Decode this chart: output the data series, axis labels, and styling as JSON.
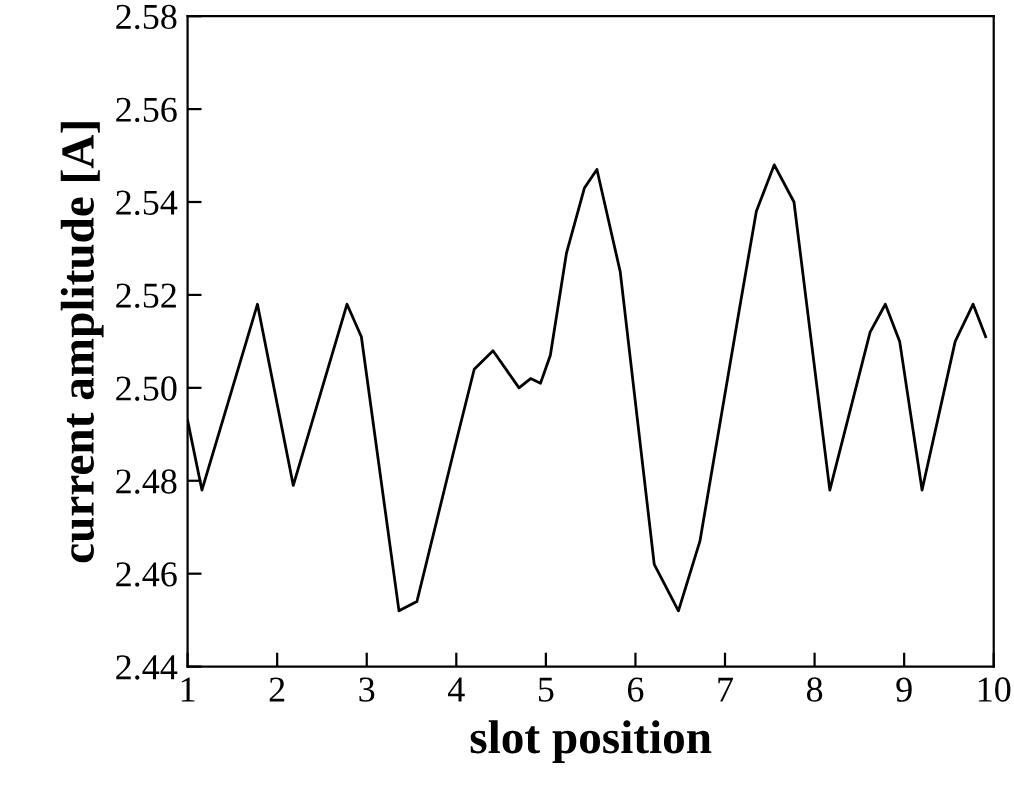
{
  "chart_data": {
    "type": "line",
    "xlabel": "slot position",
    "ylabel": "current amplitude [A]",
    "series": [
      {
        "color": "#000000",
        "x": [
          1.0,
          1.16,
          1.78,
          2.18,
          2.78,
          2.94,
          3.36,
          3.56,
          3.98,
          4.2,
          4.41,
          4.7,
          4.83,
          4.94,
          5.05,
          5.23,
          5.43,
          5.57,
          5.83,
          6.21,
          6.48,
          6.72,
          7.17,
          7.35,
          7.55,
          7.77,
          8.17,
          8.62,
          8.79,
          8.95,
          9.2,
          9.57,
          9.77,
          9.91
        ],
        "values": [
          2.493,
          2.478,
          2.518,
          2.479,
          2.518,
          2.511,
          2.452,
          2.454,
          2.487,
          2.504,
          2.508,
          2.5,
          2.502,
          2.501,
          2.507,
          2.529,
          2.543,
          2.547,
          2.525,
          2.462,
          2.452,
          2.467,
          2.518,
          2.538,
          2.548,
          2.54,
          2.478,
          2.512,
          2.518,
          2.51,
          2.478,
          2.51,
          2.518,
          2.511
        ]
      }
    ],
    "xlim": [
      1,
      10
    ],
    "xticks": [
      1,
      2,
      3,
      4,
      5,
      6,
      7,
      8,
      9,
      10
    ],
    "ylim": [
      2.44,
      2.58
    ],
    "yticks": [
      {
        "value": 2.44,
        "label": "2.44"
      },
      {
        "value": 2.46,
        "label": "2.46"
      },
      {
        "value": 2.48,
        "label": "2.48"
      },
      {
        "value": 2.5,
        "label": "2.50"
      },
      {
        "value": 2.52,
        "label": "2.52"
      },
      {
        "value": 2.54,
        "label": "2.54"
      },
      {
        "value": 2.56,
        "label": "2.56"
      },
      {
        "value": 2.58,
        "label": "2.58"
      }
    ],
    "grid": false,
    "marker": "none",
    "line_style": "solid"
  }
}
